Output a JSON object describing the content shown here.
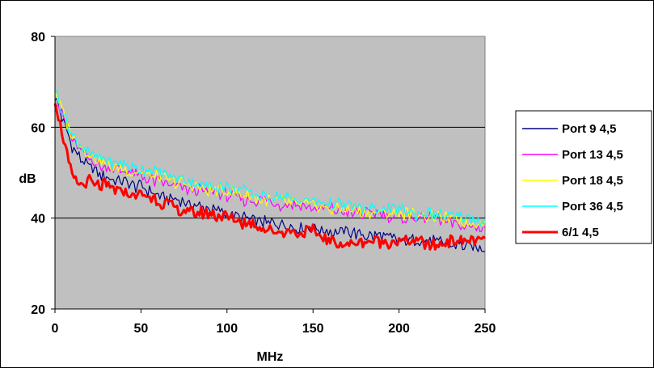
{
  "chart_data": {
    "type": "line",
    "xlabel": "MHz",
    "ylabel": "dB",
    "xlim": [
      0,
      250
    ],
    "ylim": [
      20,
      80
    ],
    "xticks": [
      0,
      50,
      100,
      150,
      200,
      250
    ],
    "yticks": [
      20,
      40,
      60,
      80
    ],
    "grid": "horizontal",
    "plot_background": "#c0c0c0",
    "legend_position": "right",
    "series": [
      {
        "name": "Port 9 4,5",
        "color": "#000080",
        "x": [
          0,
          5,
          10,
          15,
          20,
          25,
          30,
          35,
          40,
          45,
          50,
          60,
          70,
          80,
          90,
          100,
          110,
          120,
          130,
          140,
          150,
          160,
          170,
          180,
          190,
          200,
          210,
          220,
          230,
          240,
          250
        ],
        "y": [
          67,
          61,
          56,
          53,
          51,
          50,
          49,
          48,
          48,
          47,
          47,
          45,
          44,
          43,
          42,
          41,
          40,
          39,
          39,
          38,
          38,
          37,
          37,
          36,
          36,
          35,
          35,
          35,
          34,
          34,
          33
        ]
      },
      {
        "name": "Port 13 4,5",
        "color": "#ff00ff",
        "x": [
          0,
          5,
          10,
          15,
          20,
          25,
          30,
          35,
          40,
          45,
          50,
          60,
          70,
          80,
          90,
          100,
          110,
          120,
          130,
          140,
          150,
          160,
          170,
          180,
          190,
          200,
          210,
          220,
          230,
          240,
          250
        ],
        "y": [
          67,
          62,
          57,
          55,
          53,
          52,
          51,
          51,
          50,
          50,
          49,
          48,
          47,
          46,
          46,
          45,
          44,
          44,
          43,
          43,
          42,
          42,
          41,
          41,
          41,
          40,
          40,
          40,
          39,
          38,
          38
        ]
      },
      {
        "name": "Port 18 4,5",
        "color": "#ffff00",
        "x": [
          0,
          5,
          10,
          15,
          20,
          25,
          30,
          35,
          40,
          45,
          50,
          60,
          70,
          80,
          90,
          100,
          110,
          120,
          130,
          140,
          150,
          160,
          170,
          180,
          190,
          200,
          210,
          220,
          230,
          240,
          250
        ],
        "y": [
          68,
          63,
          58,
          56,
          54,
          53,
          52,
          51,
          51,
          50,
          50,
          49,
          48,
          47,
          46,
          46,
          45,
          44,
          44,
          43,
          43,
          42,
          42,
          41,
          41,
          41,
          41,
          40,
          40,
          39,
          39
        ]
      },
      {
        "name": "Port 36 4,5",
        "color": "#00ffff",
        "x": [
          0,
          5,
          10,
          15,
          20,
          25,
          30,
          35,
          40,
          45,
          50,
          60,
          70,
          80,
          90,
          100,
          110,
          120,
          130,
          140,
          150,
          160,
          170,
          180,
          190,
          200,
          210,
          220,
          230,
          240,
          250
        ],
        "y": [
          68,
          63,
          58,
          56,
          54,
          53,
          53,
          52,
          52,
          51,
          51,
          50,
          49,
          48,
          47,
          47,
          46,
          45,
          45,
          44,
          44,
          43,
          43,
          42,
          42,
          42,
          41,
          41,
          40,
          40,
          39
        ]
      },
      {
        "name": "6/1 4,5",
        "color": "#ff0000",
        "x": [
          0,
          5,
          10,
          15,
          20,
          25,
          30,
          35,
          40,
          45,
          50,
          60,
          70,
          80,
          90,
          100,
          110,
          120,
          130,
          140,
          150,
          160,
          170,
          180,
          190,
          200,
          210,
          220,
          230,
          240,
          250
        ],
        "y": [
          66,
          57,
          49,
          47,
          48,
          47,
          47,
          46,
          46,
          45,
          45,
          44,
          42,
          41,
          41,
          40,
          39,
          38,
          37,
          37,
          37,
          35,
          34,
          35,
          35,
          35,
          35,
          34,
          35,
          35,
          35
        ]
      }
    ]
  }
}
